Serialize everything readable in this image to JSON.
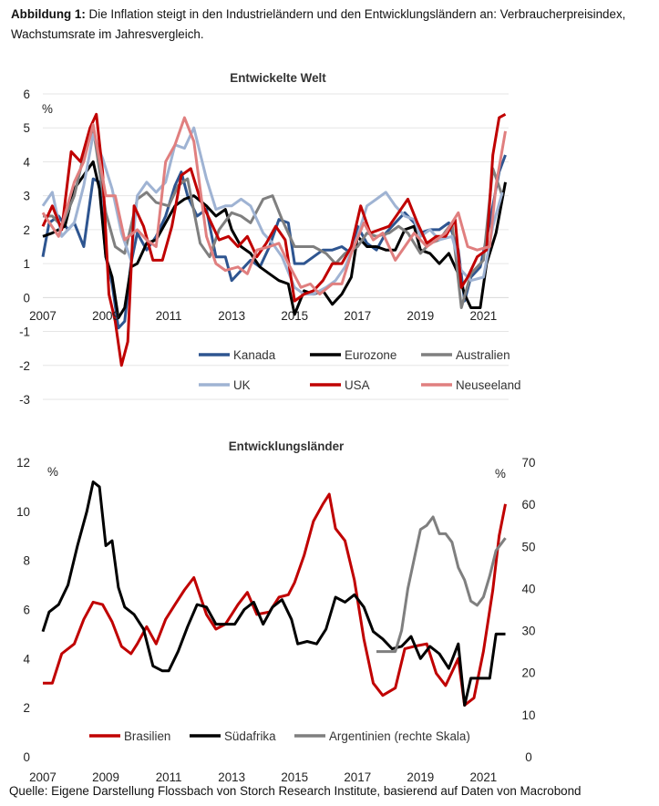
{
  "caption": {
    "label": "Abbildung 1:",
    "text": " Die Inflation steigt in den Industrieländern und den Entwicklungsländern an: Verbraucherpreisindex, Wachstumsrate im Jahresvergleich."
  },
  "source": "Quelle: Eigene Darstellung Flossbach von Storch Research Institute, basierend auf Daten von Macrobond",
  "chart_data": [
    {
      "type": "line",
      "title": "Entwickelte Welt",
      "unit_label": "%",
      "ylim": [
        -3,
        6
      ],
      "y_ticks": [
        6,
        5,
        4,
        3,
        2,
        1,
        0,
        -1,
        -2,
        -3
      ],
      "xlim": [
        2007,
        2021.8
      ],
      "x_ticks": [
        {
          "x": 2007,
          "label": "2007"
        },
        {
          "x": 2009,
          "label": "2009"
        },
        {
          "x": 2011,
          "label": "2011"
        },
        {
          "x": 2013,
          "label": "2013"
        },
        {
          "x": 2015,
          "label": "2015"
        },
        {
          "x": 2017,
          "label": "2017"
        },
        {
          "x": 2019,
          "label": "2019"
        },
        {
          "x": 2021,
          "label": "2021"
        }
      ],
      "grid": true,
      "legend_position": "bottom",
      "series": [
        {
          "name": "Kanada",
          "color": "#2e5590",
          "x": [
            2007,
            2007.2,
            2007.5,
            2007.8,
            2008,
            2008.3,
            2008.6,
            2008.8,
            2009,
            2009.2,
            2009.4,
            2009.6,
            2009.8,
            2010,
            2010.3,
            2010.6,
            2010.9,
            2011.2,
            2011.4,
            2011.6,
            2011.9,
            2012.2,
            2012.5,
            2012.8,
            2013,
            2013.3,
            2013.6,
            2013.9,
            2014.2,
            2014.5,
            2014.8,
            2015,
            2015.3,
            2015.6,
            2015.9,
            2016.2,
            2016.5,
            2016.8,
            2017,
            2017.3,
            2017.6,
            2017.9,
            2018.2,
            2018.5,
            2018.8,
            2019,
            2019.3,
            2019.6,
            2019.9,
            2020.2,
            2020.4,
            2020.6,
            2020.9,
            2021.2,
            2021.5,
            2021.7
          ],
          "y": [
            1.2,
            2.2,
            2.4,
            2.0,
            2.2,
            1.5,
            3.5,
            3.4,
            1.2,
            0.4,
            -0.9,
            -0.7,
            1.0,
            1.9,
            1.4,
            1.8,
            2.4,
            3.3,
            3.7,
            3.0,
            2.4,
            2.6,
            1.2,
            1.2,
            0.5,
            0.8,
            1.1,
            0.9,
            1.5,
            2.3,
            2.2,
            1.0,
            1.0,
            1.2,
            1.4,
            1.4,
            1.5,
            1.3,
            2.1,
            1.6,
            1.4,
            1.9,
            2.2,
            2.5,
            2.2,
            1.9,
            2.0,
            2.0,
            2.2,
            1.4,
            -0.1,
            0.6,
            0.9,
            2.2,
            3.7,
            4.2
          ]
        },
        {
          "name": "Eurozone",
          "color": "#000000",
          "x": [
            2007,
            2007.3,
            2007.7,
            2008,
            2008.3,
            2008.6,
            2008.8,
            2009,
            2009.2,
            2009.4,
            2009.6,
            2009.8,
            2010,
            2010.3,
            2010.6,
            2010.9,
            2011.2,
            2011.5,
            2011.8,
            2012.2,
            2012.5,
            2012.8,
            2013,
            2013.3,
            2013.6,
            2013.9,
            2014.2,
            2014.5,
            2014.8,
            2015,
            2015.3,
            2015.6,
            2015.9,
            2016.2,
            2016.5,
            2016.8,
            2017,
            2017.3,
            2017.6,
            2017.9,
            2018.2,
            2018.5,
            2018.8,
            2019,
            2019.3,
            2019.6,
            2019.9,
            2020.2,
            2020.4,
            2020.6,
            2020.9,
            2021.1,
            2021.4,
            2021.7
          ],
          "y": [
            1.8,
            1.9,
            2.1,
            3.2,
            3.6,
            4.0,
            3.2,
            1.2,
            0.6,
            -0.6,
            -0.3,
            0.9,
            1.0,
            1.6,
            1.7,
            2.2,
            2.7,
            2.9,
            3.0,
            2.7,
            2.4,
            2.6,
            2.0,
            1.5,
            1.3,
            0.9,
            0.7,
            0.5,
            0.4,
            -0.5,
            0.2,
            0.1,
            0.2,
            -0.2,
            0.1,
            0.6,
            1.8,
            1.5,
            1.5,
            1.4,
            1.4,
            2.0,
            2.1,
            1.4,
            1.3,
            1.0,
            1.3,
            0.7,
            0.1,
            -0.3,
            -0.3,
            1.0,
            1.9,
            3.4
          ]
        },
        {
          "name": "Australien",
          "color": "#7f7f7f",
          "x": [
            2007,
            2007.3,
            2007.6,
            2008,
            2008.3,
            2008.6,
            2009,
            2009.3,
            2009.6,
            2010,
            2010.3,
            2010.6,
            2011,
            2011.3,
            2011.6,
            2012,
            2012.3,
            2012.6,
            2013,
            2013.3,
            2013.6,
            2014,
            2014.3,
            2014.6,
            2015,
            2015.3,
            2015.6,
            2016,
            2016.3,
            2016.6,
            2017,
            2017.3,
            2017.6,
            2018,
            2018.3,
            2018.6,
            2019,
            2019.3,
            2019.6,
            2020,
            2020.3,
            2020.6,
            2021,
            2021.3,
            2021.6
          ],
          "y": [
            2.4,
            2.4,
            2.1,
            3.0,
            4.2,
            5.0,
            2.5,
            1.5,
            1.3,
            2.9,
            3.1,
            2.8,
            2.7,
            3.3,
            3.5,
            1.6,
            1.2,
            2.0,
            2.5,
            2.4,
            2.2,
            2.9,
            3.0,
            2.3,
            1.5,
            1.5,
            1.5,
            1.3,
            1.0,
            1.3,
            1.5,
            1.9,
            1.8,
            1.9,
            2.1,
            1.9,
            1.3,
            1.6,
            1.7,
            2.2,
            -0.3,
            0.7,
            1.1,
            3.8,
            3.0
          ]
        },
        {
          "name": "UK",
          "color": "#9fb3d3",
          "x": [
            2007,
            2007.3,
            2007.6,
            2008,
            2008.3,
            2008.6,
            2008.9,
            2009.2,
            2009.5,
            2009.8,
            2010,
            2010.3,
            2010.6,
            2010.9,
            2011.2,
            2011.5,
            2011.8,
            2012.2,
            2012.5,
            2012.8,
            2013,
            2013.3,
            2013.6,
            2014,
            2014.3,
            2014.6,
            2015,
            2015.3,
            2015.6,
            2016,
            2016.3,
            2016.6,
            2017,
            2017.3,
            2017.6,
            2017.9,
            2018.2,
            2018.5,
            2018.8,
            2019,
            2019.3,
            2019.6,
            2020,
            2020.3,
            2020.6,
            2021,
            2021.3,
            2021.6
          ],
          "y": [
            2.7,
            3.1,
            1.8,
            2.2,
            3.3,
            4.8,
            4.1,
            3.2,
            1.9,
            1.1,
            3.0,
            3.4,
            3.1,
            3.4,
            4.5,
            4.4,
            5.0,
            3.5,
            2.6,
            2.7,
            2.7,
            2.9,
            2.7,
            1.9,
            1.6,
            1.2,
            0.3,
            0.1,
            0.1,
            0.3,
            0.5,
            0.9,
            1.8,
            2.7,
            2.9,
            3.1,
            2.7,
            2.4,
            2.3,
            1.8,
            2.0,
            1.7,
            1.8,
            0.8,
            0.5,
            0.6,
            2.1,
            3.1
          ]
        },
        {
          "name": "USA",
          "color": "#c00000",
          "x": [
            2007,
            2007.3,
            2007.6,
            2007.9,
            2008.2,
            2008.5,
            2008.7,
            2008.9,
            2009.1,
            2009.3,
            2009.5,
            2009.7,
            2009.9,
            2010.2,
            2010.5,
            2010.8,
            2011.1,
            2011.4,
            2011.7,
            2012,
            2012.3,
            2012.6,
            2012.9,
            2013.2,
            2013.5,
            2013.8,
            2014.1,
            2014.4,
            2014.7,
            2015,
            2015.3,
            2015.6,
            2015.9,
            2016.2,
            2016.5,
            2016.8,
            2017.1,
            2017.4,
            2017.7,
            2018,
            2018.3,
            2018.6,
            2018.9,
            2019.2,
            2019.5,
            2019.8,
            2020.1,
            2020.3,
            2020.5,
            2020.8,
            2021.1,
            2021.3,
            2021.5,
            2021.7
          ],
          "y": [
            2.1,
            2.7,
            2.0,
            4.3,
            4.0,
            5.0,
            5.4,
            3.7,
            0.1,
            -0.7,
            -2.0,
            -1.3,
            2.7,
            2.1,
            1.1,
            1.1,
            2.1,
            3.6,
            3.8,
            2.9,
            2.3,
            1.7,
            1.8,
            1.5,
            1.8,
            1.2,
            1.6,
            2.1,
            1.7,
            -0.1,
            0.1,
            0.2,
            0.5,
            1.0,
            1.0,
            1.5,
            2.7,
            1.9,
            2.0,
            2.1,
            2.5,
            2.9,
            2.2,
            1.6,
            1.8,
            1.8,
            2.3,
            0.3,
            0.6,
            1.2,
            1.4,
            4.2,
            5.3,
            5.4
          ]
        },
        {
          "name": "Neuseeland",
          "color": "#e07f7f",
          "x": [
            2007,
            2007.5,
            2008,
            2008.3,
            2008.6,
            2009,
            2009.3,
            2009.6,
            2010,
            2010.3,
            2010.6,
            2010.9,
            2011.2,
            2011.5,
            2011.8,
            2012.2,
            2012.5,
            2012.8,
            2013.2,
            2013.5,
            2013.8,
            2014.2,
            2014.5,
            2014.8,
            2015.2,
            2015.5,
            2015.8,
            2016.2,
            2016.5,
            2016.8,
            2017.2,
            2017.5,
            2017.8,
            2018.2,
            2018.5,
            2018.8,
            2019.2,
            2019.5,
            2019.8,
            2020.2,
            2020.5,
            2020.8,
            2021.2,
            2021.4,
            2021.7
          ],
          "y": [
            2.5,
            1.8,
            3.4,
            4.0,
            5.1,
            3.0,
            3.0,
            1.7,
            2.0,
            1.7,
            1.5,
            4.0,
            4.5,
            5.3,
            4.6,
            1.8,
            1.0,
            0.8,
            0.9,
            0.7,
            1.4,
            1.5,
            1.6,
            1.0,
            0.3,
            0.4,
            0.1,
            0.4,
            0.4,
            1.3,
            2.2,
            1.7,
            1.9,
            1.1,
            1.5,
            1.9,
            1.5,
            1.7,
            1.9,
            2.5,
            1.5,
            1.4,
            1.5,
            3.3,
            4.9
          ]
        }
      ]
    },
    {
      "type": "line",
      "title": "Entwicklungsländer",
      "unit_label_left": "%",
      "unit_label_right": "%",
      "ylim": [
        0,
        12
      ],
      "y_ticks": [
        12,
        10,
        8,
        6,
        4,
        2,
        0
      ],
      "y2lim": [
        0,
        70
      ],
      "y2_ticks": [
        70,
        60,
        50,
        40,
        30,
        20,
        10,
        0
      ],
      "xlim": [
        2007,
        2021.8
      ],
      "x_ticks": [
        {
          "x": 2007,
          "label": "2007"
        },
        {
          "x": 2009,
          "label": "2009"
        },
        {
          "x": 2011,
          "label": "2011"
        },
        {
          "x": 2013,
          "label": "2013"
        },
        {
          "x": 2015,
          "label": "2015"
        },
        {
          "x": 2017,
          "label": "2017"
        },
        {
          "x": 2019,
          "label": "2019"
        },
        {
          "x": 2021,
          "label": "2021"
        }
      ],
      "grid": false,
      "legend_position": "bottom",
      "series": [
        {
          "name": "Brasilien",
          "color": "#c00000",
          "axis": "left",
          "x": [
            2007,
            2007.3,
            2007.6,
            2008,
            2008.3,
            2008.6,
            2008.9,
            2009.2,
            2009.5,
            2009.8,
            2010,
            2010.3,
            2010.6,
            2010.9,
            2011.2,
            2011.5,
            2011.8,
            2012.2,
            2012.5,
            2012.8,
            2013.2,
            2013.5,
            2013.8,
            2014.2,
            2014.5,
            2014.8,
            2015,
            2015.3,
            2015.6,
            2015.9,
            2016.1,
            2016.3,
            2016.6,
            2016.9,
            2017.2,
            2017.5,
            2017.8,
            2018.2,
            2018.5,
            2018.8,
            2019.2,
            2019.5,
            2019.8,
            2020.2,
            2020.4,
            2020.7,
            2021,
            2021.3,
            2021.5,
            2021.7
          ],
          "y": [
            3.0,
            3.0,
            4.2,
            4.6,
            5.6,
            6.3,
            6.2,
            5.5,
            4.5,
            4.2,
            4.6,
            5.3,
            4.6,
            5.6,
            6.2,
            6.8,
            7.3,
            5.8,
            5.2,
            5.4,
            6.2,
            6.7,
            5.8,
            5.9,
            6.5,
            6.6,
            7.1,
            8.2,
            9.6,
            10.3,
            10.7,
            9.3,
            8.8,
            7.2,
            4.8,
            3.0,
            2.5,
            2.8,
            4.4,
            4.5,
            4.6,
            3.4,
            2.9,
            4.0,
            2.1,
            2.4,
            4.3,
            6.8,
            9.0,
            10.3
          ]
        },
        {
          "name": "Südafrika",
          "color": "#000000",
          "axis": "left",
          "x": [
            2007,
            2007.2,
            2007.5,
            2007.8,
            2008.1,
            2008.4,
            2008.6,
            2008.8,
            2009,
            2009.2,
            2009.4,
            2009.6,
            2009.9,
            2010.2,
            2010.5,
            2010.8,
            2011,
            2011.3,
            2011.6,
            2011.9,
            2012.2,
            2012.5,
            2012.8,
            2013.1,
            2013.4,
            2013.7,
            2014,
            2014.3,
            2014.6,
            2014.9,
            2015.1,
            2015.4,
            2015.7,
            2016,
            2016.3,
            2016.6,
            2016.9,
            2017.2,
            2017.5,
            2017.8,
            2018.1,
            2018.4,
            2018.7,
            2019,
            2019.3,
            2019.6,
            2019.9,
            2020.2,
            2020.4,
            2020.6,
            2020.9,
            2021.2,
            2021.4,
            2021.7
          ],
          "y": [
            5.1,
            5.9,
            6.2,
            7.0,
            8.6,
            10.0,
            11.2,
            11.0,
            8.6,
            8.8,
            6.9,
            6.1,
            5.8,
            5.2,
            3.7,
            3.5,
            3.5,
            4.3,
            5.3,
            6.2,
            6.1,
            5.4,
            5.4,
            5.4,
            6.0,
            6.3,
            5.4,
            6.1,
            6.4,
            5.6,
            4.6,
            4.7,
            4.6,
            5.2,
            6.5,
            6.3,
            6.6,
            6.1,
            5.1,
            4.8,
            4.4,
            4.5,
            4.9,
            4.0,
            4.5,
            4.2,
            3.6,
            4.6,
            2.1,
            3.2,
            3.2,
            3.2,
            5.0,
            5.0
          ]
        },
        {
          "name": "Argentinien (rechte Skala)",
          "color": "#7f7f7f",
          "axis": "right",
          "x": [
            2017.6,
            2017.9,
            2018.2,
            2018.4,
            2018.6,
            2018.8,
            2019,
            2019.2,
            2019.4,
            2019.6,
            2019.8,
            2020,
            2020.2,
            2020.4,
            2020.6,
            2020.8,
            2021,
            2021.2,
            2021.4,
            2021.6,
            2021.7
          ],
          "y": [
            25,
            25,
            25,
            30,
            40,
            47,
            54,
            55,
            57,
            53,
            53,
            51,
            45,
            42,
            37,
            36,
            38,
            43,
            49,
            51,
            52
          ]
        }
      ]
    }
  ]
}
